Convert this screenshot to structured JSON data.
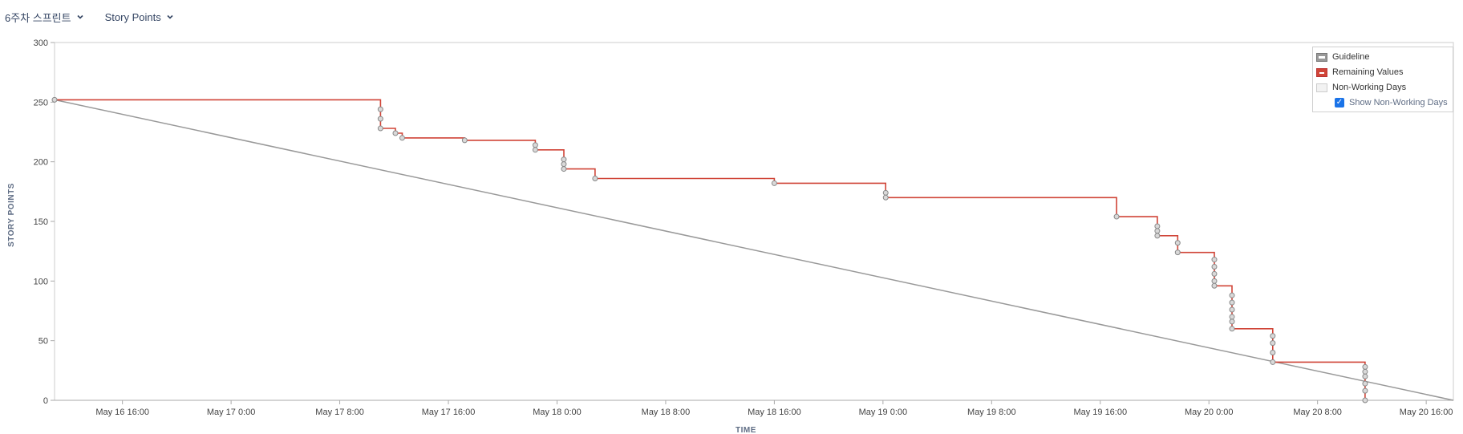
{
  "toolbar": {
    "sprint_select": "6주차 스프린트",
    "metric_select": "Story Points"
  },
  "legend": {
    "guideline": "Guideline",
    "remaining": "Remaining Values",
    "non_working": "Non-Working Days",
    "show_non_working": "Show Non-Working Days",
    "show_non_working_checked": true
  },
  "colors": {
    "remaining": "#d04437",
    "guideline": "#999999",
    "marker_fill": "#d9d9d9",
    "marker_stroke": "#888888"
  },
  "chart_data": {
    "type": "line",
    "title": "",
    "xlabel": "TIME",
    "ylabel": "STORY POINTS",
    "ylim": [
      0,
      300
    ],
    "yticks": [
      0,
      50,
      100,
      150,
      200,
      250,
      300
    ],
    "x_unit": "hours since May 16 11:00",
    "xticks": [
      {
        "x": 5,
        "label": "May 16 16:00"
      },
      {
        "x": 13,
        "label": "May 17 0:00"
      },
      {
        "x": 21,
        "label": "May 17 8:00"
      },
      {
        "x": 29,
        "label": "May 17 16:00"
      },
      {
        "x": 37,
        "label": "May 18 0:00"
      },
      {
        "x": 45,
        "label": "May 18 8:00"
      },
      {
        "x": 53,
        "label": "May 18 16:00"
      },
      {
        "x": 61,
        "label": "May 19 0:00"
      },
      {
        "x": 69,
        "label": "May 19 8:00"
      },
      {
        "x": 77,
        "label": "May 19 16:00"
      },
      {
        "x": 85,
        "label": "May 20 0:00"
      },
      {
        "x": 93,
        "label": "May 20 8:00"
      },
      {
        "x": 101,
        "label": "May 20 16:00"
      }
    ],
    "xlim": [
      0,
      103
    ],
    "grid": false,
    "legend_position": "top-right",
    "series": [
      {
        "name": "Guideline",
        "points": [
          [
            0,
            252
          ],
          [
            103,
            0
          ]
        ]
      },
      {
        "name": "Remaining Values",
        "step": true,
        "points": [
          [
            0,
            252
          ],
          [
            24,
            252
          ],
          [
            24,
            244
          ],
          [
            24,
            236
          ],
          [
            24,
            228
          ],
          [
            25.1,
            228
          ],
          [
            25.1,
            224
          ],
          [
            25.6,
            224
          ],
          [
            25.6,
            220
          ],
          [
            30.2,
            220
          ],
          [
            30.2,
            218
          ],
          [
            35.4,
            218
          ],
          [
            35.4,
            214
          ],
          [
            35.4,
            210
          ],
          [
            37.5,
            210
          ],
          [
            37.5,
            202
          ],
          [
            37.5,
            198
          ],
          [
            37.5,
            194
          ],
          [
            39.8,
            194
          ],
          [
            39.8,
            186
          ],
          [
            53,
            186
          ],
          [
            53,
            182
          ],
          [
            61.2,
            182
          ],
          [
            61.2,
            174
          ],
          [
            61.2,
            170
          ],
          [
            78.2,
            170
          ],
          [
            78.2,
            154
          ],
          [
            81.2,
            154
          ],
          [
            81.2,
            146
          ],
          [
            81.2,
            142
          ],
          [
            81.2,
            138
          ],
          [
            82.7,
            138
          ],
          [
            82.7,
            132
          ],
          [
            82.7,
            124
          ],
          [
            85.4,
            124
          ],
          [
            85.4,
            118
          ],
          [
            85.4,
            112
          ],
          [
            85.4,
            106
          ],
          [
            85.4,
            100
          ],
          [
            85.4,
            96
          ],
          [
            86.7,
            96
          ],
          [
            86.7,
            88
          ],
          [
            86.7,
            82
          ],
          [
            86.7,
            76
          ],
          [
            86.7,
            70
          ],
          [
            86.7,
            66
          ],
          [
            86.7,
            60
          ],
          [
            89.7,
            60
          ],
          [
            89.7,
            54
          ],
          [
            89.7,
            48
          ],
          [
            89.7,
            40
          ],
          [
            89.7,
            32
          ],
          [
            96.5,
            32
          ],
          [
            96.5,
            28
          ],
          [
            96.5,
            24
          ],
          [
            96.5,
            20
          ],
          [
            96.5,
            14
          ],
          [
            96.5,
            8
          ],
          [
            96.5,
            0
          ]
        ]
      }
    ]
  }
}
